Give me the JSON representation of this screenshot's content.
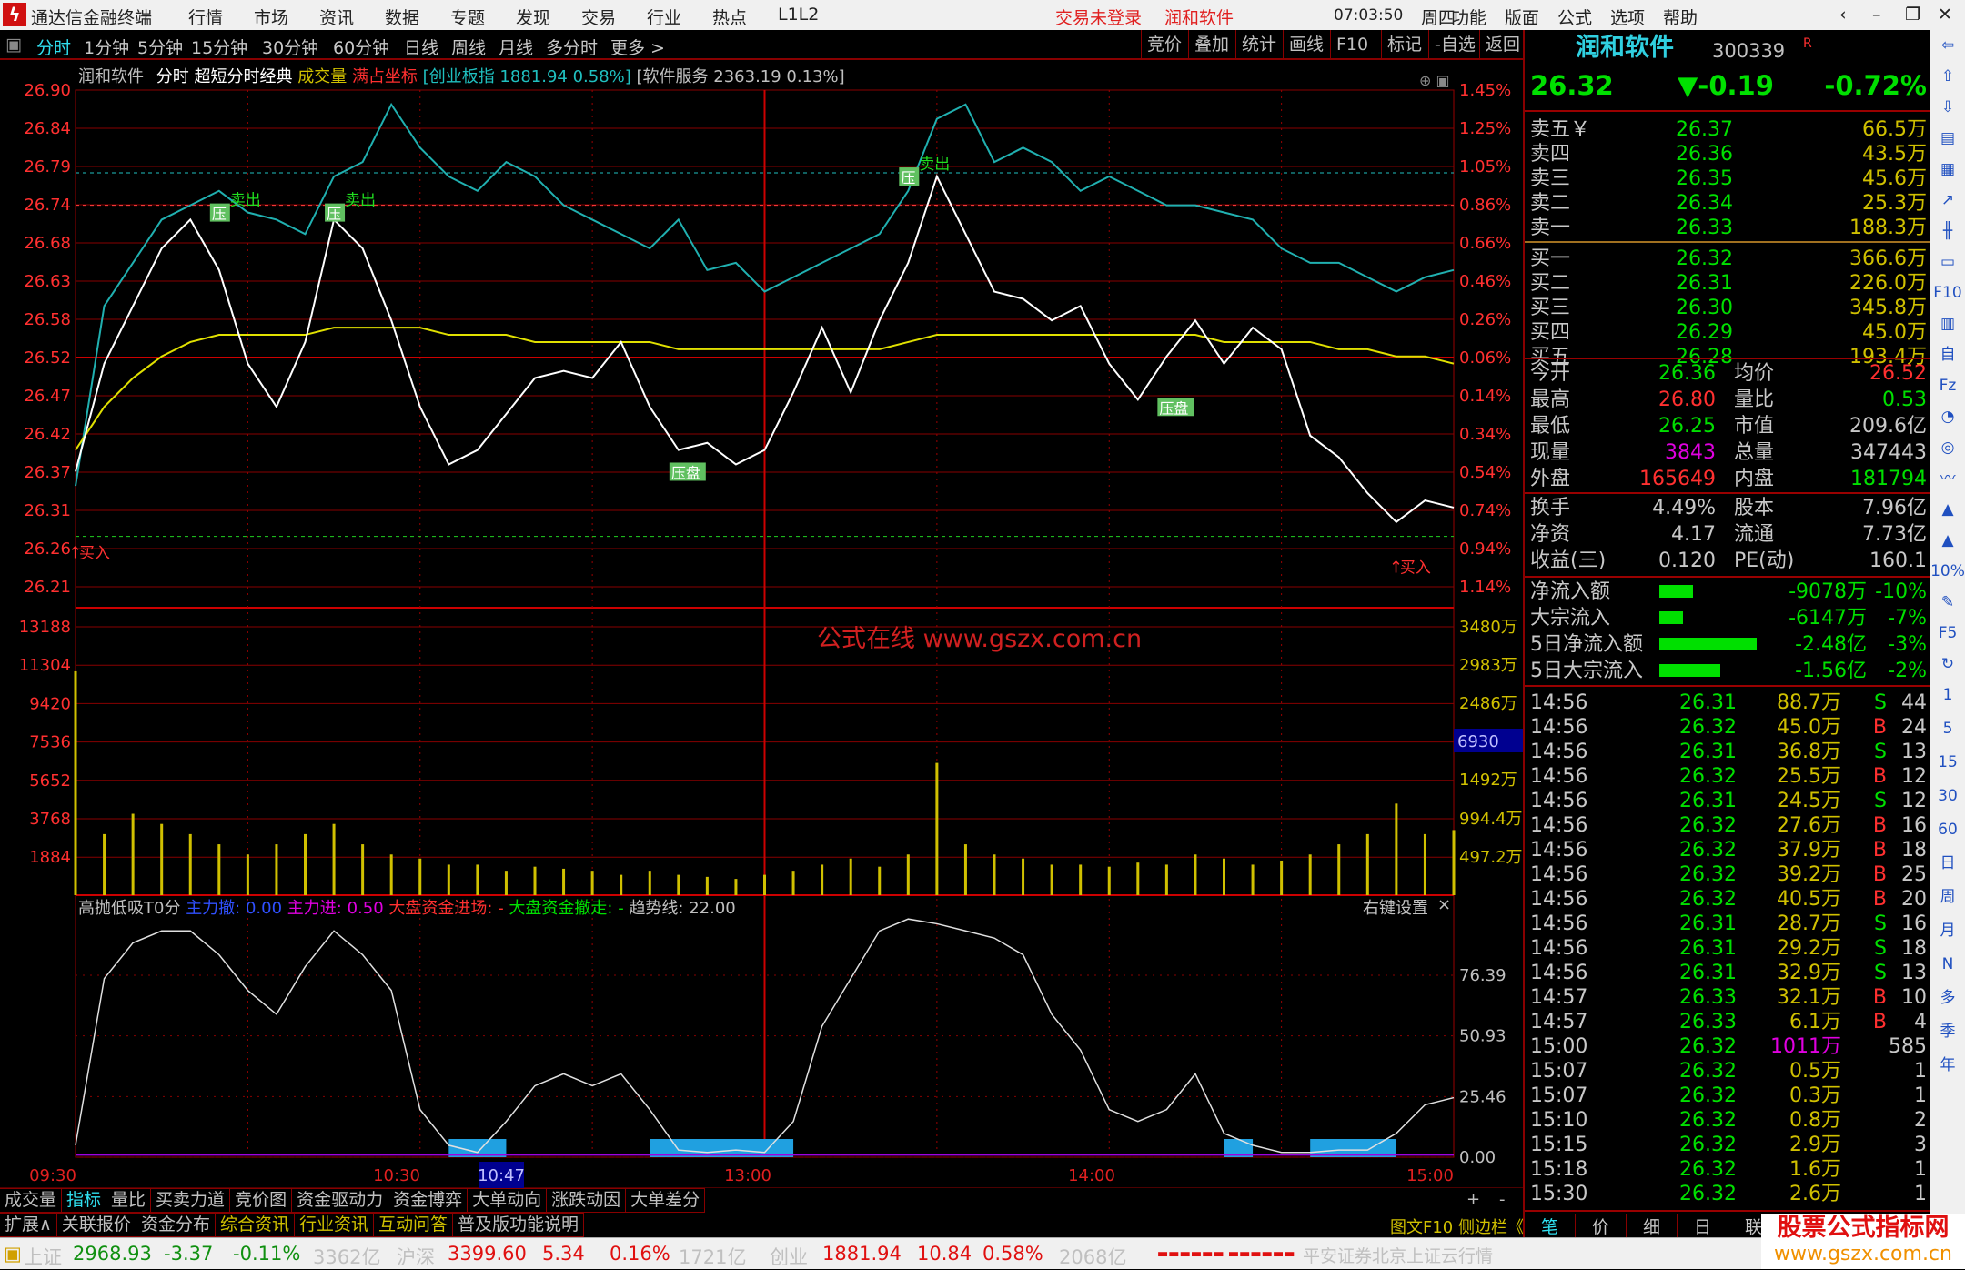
{
  "app": {
    "title": "通达信金融终端",
    "menu": [
      "行情",
      "市场",
      "资讯",
      "数据",
      "专题",
      "发现",
      "交易",
      "行业",
      "热点",
      "L1L2"
    ],
    "login_status": "交易未登录",
    "stock_tab": "润和软件",
    "right_menu": [
      "功能",
      "版面",
      "公式",
      "选项",
      "帮助"
    ],
    "clock": "07:03:50",
    "weekday": "周四"
  },
  "toolbar": {
    "periods": [
      "分时",
      "1分钟",
      "5分钟",
      "15分钟",
      "30分钟",
      "60分钟",
      "日线",
      "周线",
      "月线",
      "多分时",
      "更多 >"
    ],
    "active": "分时",
    "right": [
      "竞价",
      "叠加",
      "统计",
      "画线",
      "F10",
      "标记",
      "-自选",
      "返回"
    ]
  },
  "chart_header": {
    "name": "润和软件",
    "mode": "分时",
    "formula": "超短分时经典",
    "vol": "成交量",
    "coord": "满占坐标",
    "index1": "[创业板指 1881.94 0.58%]",
    "index2": "[软件服务 2363.19 0.13%]"
  },
  "watermark": "公式在线  www.gszx.com.cn",
  "chart_data": {
    "type": "line",
    "price_ticks": [
      "26.90",
      "26.84",
      "26.79",
      "26.74",
      "26.68",
      "26.63",
      "26.58",
      "26.52",
      "26.47",
      "26.42",
      "26.37",
      "26.31",
      "26.26",
      "26.21"
    ],
    "pct_ticks": [
      "1.45%",
      "1.25%",
      "1.05%",
      "0.86%",
      "0.66%",
      "0.46%",
      "0.26%",
      "0.06%",
      "0.14%",
      "0.34%",
      "0.54%",
      "0.74%",
      "0.94%",
      "1.14%"
    ],
    "vol_ticks_left": [
      "13188",
      "11304",
      "9420",
      "7536",
      "5652",
      "3768",
      "1884"
    ],
    "vol_ticks_right": [
      "3480万",
      "2983万",
      "2486万",
      "1492万",
      "994.4万",
      "497.2万"
    ],
    "vol_cursor": "6930",
    "ind_ticks": [
      "76.39",
      "50.93",
      "25.46",
      "0.00"
    ],
    "time_ticks": [
      "09:30",
      "10:30",
      "13:00",
      "14:00",
      "15:00"
    ],
    "cursor_time": "10:47",
    "ylim": [
      26.21,
      26.9
    ],
    "vol_max": 13188,
    "ind_range": [
      0,
      100
    ],
    "times": [
      "09:30",
      "09:35",
      "09:40",
      "09:45",
      "09:50",
      "09:55",
      "10:00",
      "10:05",
      "10:10",
      "10:15",
      "10:20",
      "10:25",
      "10:30",
      "10:35",
      "10:40",
      "10:45",
      "10:50",
      "10:55",
      "11:00",
      "11:05",
      "11:10",
      "11:15",
      "11:20",
      "11:25",
      "11:30",
      "13:05",
      "13:10",
      "13:15",
      "13:20",
      "13:25",
      "13:30",
      "13:35",
      "13:40",
      "13:45",
      "13:50",
      "13:55",
      "14:00",
      "14:05",
      "14:10",
      "14:15",
      "14:20",
      "14:25",
      "14:30",
      "14:35",
      "14:40",
      "14:45",
      "14:50",
      "14:55",
      "15:00"
    ],
    "series": [
      {
        "key": "price",
        "color": "#ffffff",
        "values": [
          26.37,
          26.52,
          26.6,
          26.68,
          26.72,
          26.65,
          26.52,
          26.46,
          26.55,
          26.72,
          26.68,
          26.58,
          26.46,
          26.38,
          26.4,
          26.45,
          26.5,
          26.51,
          26.5,
          26.55,
          26.46,
          26.4,
          26.41,
          26.38,
          26.4,
          26.48,
          26.57,
          26.48,
          26.58,
          26.66,
          26.78,
          26.7,
          26.62,
          26.61,
          26.58,
          26.6,
          26.52,
          26.47,
          26.53,
          26.58,
          26.52,
          26.57,
          26.54,
          26.42,
          26.39,
          26.34,
          26.3,
          26.33,
          26.32
        ]
      },
      {
        "key": "avg",
        "color": "#e0e000",
        "values": [
          26.4,
          26.46,
          26.5,
          26.53,
          26.55,
          26.56,
          26.56,
          26.56,
          26.56,
          26.57,
          26.57,
          26.57,
          26.57,
          26.56,
          26.56,
          26.56,
          26.55,
          26.55,
          26.55,
          26.55,
          26.55,
          26.54,
          26.54,
          26.54,
          26.54,
          26.54,
          26.54,
          26.54,
          26.54,
          26.55,
          26.56,
          26.56,
          26.56,
          26.56,
          26.56,
          26.56,
          26.56,
          26.56,
          26.56,
          26.56,
          26.55,
          26.55,
          26.55,
          26.55,
          26.54,
          26.54,
          26.53,
          26.53,
          26.52
        ]
      },
      {
        "key": "index",
        "color": "#20b0b0",
        "values": [
          26.35,
          26.6,
          26.66,
          26.72,
          26.74,
          26.76,
          26.73,
          26.72,
          26.7,
          26.78,
          26.8,
          26.88,
          26.82,
          26.78,
          26.76,
          26.8,
          26.78,
          26.74,
          26.72,
          26.7,
          26.68,
          26.72,
          26.65,
          26.66,
          26.62,
          26.64,
          26.66,
          26.68,
          26.7,
          26.76,
          26.86,
          26.88,
          26.8,
          26.82,
          26.8,
          26.76,
          26.78,
          26.76,
          26.74,
          26.74,
          26.73,
          26.72,
          26.68,
          26.66,
          26.66,
          26.64,
          26.62,
          26.64,
          26.65
        ]
      }
    ],
    "volume": [
      11000,
      3000,
      4000,
      3500,
      3000,
      2500,
      2000,
      2500,
      3000,
      3500,
      2500,
      2000,
      1800,
      1500,
      1500,
      1200,
      1400,
      1300,
      1200,
      1000,
      1200,
      1000,
      900,
      800,
      1000,
      1200,
      1500,
      1800,
      1400,
      2000,
      6500,
      2500,
      2000,
      1800,
      1500,
      1500,
      1400,
      1600,
      1500,
      2000,
      1800,
      1500,
      1700,
      2000,
      2500,
      3000,
      4500,
      3000,
      3200
    ],
    "indicator": {
      "name": "高抛低吸T0分",
      "values": [
        5,
        75,
        90,
        95,
        95,
        85,
        70,
        60,
        80,
        95,
        85,
        70,
        20,
        5,
        2,
        15,
        30,
        35,
        30,
        35,
        20,
        3,
        2,
        3,
        2,
        15,
        55,
        75,
        95,
        100,
        98,
        95,
        92,
        85,
        60,
        45,
        20,
        15,
        20,
        35,
        10,
        5,
        2,
        2,
        3,
        3,
        10,
        22,
        25
      ],
      "zones": [
        [
          "10:35",
          "10:45"
        ],
        [
          "11:10",
          "13:05"
        ],
        [
          "14:20",
          "14:25"
        ],
        [
          "14:35",
          "14:50"
        ]
      ]
    },
    "levels": [
      {
        "price": 26.785,
        "color": "#20c0c0"
      },
      {
        "price": 26.74,
        "color": "#ff4040"
      },
      {
        "price": 26.28,
        "color": "#20d020"
      }
    ],
    "annotations": [
      {
        "time": "09:55",
        "price": 26.74,
        "label": "压",
        "text": "卖出"
      },
      {
        "time": "10:15",
        "price": 26.74,
        "label": "压",
        "text": "卖出"
      },
      {
        "time": "13:25",
        "price": 26.79,
        "label": "压",
        "text": "卖出"
      },
      {
        "time": "11:15",
        "price": 26.38,
        "label": "压盘",
        "text": ""
      },
      {
        "time": "14:10",
        "price": 26.47,
        "label": "压盘",
        "text": ""
      }
    ],
    "buy_marks": [
      {
        "time": "09:30",
        "price": 26.26,
        "text": "买入"
      },
      {
        "time": "14:50",
        "price": 26.24,
        "text": "买入"
      }
    ]
  },
  "indicator_header": {
    "name": "高抛低吸T0分",
    "a": "主力撤: 0.00",
    "b": "主力进: 0.50",
    "c": "大盘资金进场: -",
    "d": "大盘资金撤走: -",
    "e": "趋势线: 22.00",
    "settings": "右键设置",
    "close": "×"
  },
  "tabs1": [
    "成交量",
    "指标",
    "量比",
    "买卖力道",
    "竞价图",
    "资金驱动力",
    "资金博弈",
    "大单动向",
    "涨跌动因",
    "大单差分"
  ],
  "tabs1_active": "指标",
  "tabs2": [
    "扩展∧",
    "关联报价",
    "资金分布",
    "综合资讯",
    "行业资讯",
    "互动问答",
    "普及版功能说明"
  ],
  "zoom_buttons": [
    "+",
    "-"
  ],
  "sidebar_links": "图文F10 侧边栏《",
  "right": {
    "name": "润和软件",
    "code": "300339",
    "flag": "R",
    "price": "26.32",
    "change": "▼-0.19",
    "pct": "-0.72%",
    "sell": [
      [
        "卖五￥",
        "26.37",
        "66.5万"
      ],
      [
        "卖四",
        "26.36",
        "43.5万"
      ],
      [
        "卖三",
        "26.35",
        "45.6万"
      ],
      [
        "卖二",
        "26.34",
        "25.3万"
      ],
      [
        "卖一",
        "26.33",
        "188.3万"
      ]
    ],
    "buy": [
      [
        "买一",
        "26.32",
        "366.6万"
      ],
      [
        "买二",
        "26.31",
        "226.0万"
      ],
      [
        "买三",
        "26.30",
        "345.8万"
      ],
      [
        "买四",
        "26.29",
        "45.0万"
      ],
      [
        "买五",
        "26.28",
        "193.4万"
      ]
    ],
    "stats": [
      [
        "今开",
        "26.36",
        "g",
        "均价",
        "26.52",
        "r"
      ],
      [
        "最高",
        "26.80",
        "r",
        "量比",
        "0.53",
        "g"
      ],
      [
        "最低",
        "26.25",
        "g",
        "市值",
        "209.6亿",
        "w"
      ],
      [
        "现量",
        "3843",
        "m",
        "总量",
        "347443",
        "w"
      ],
      [
        "外盘",
        "165649",
        "r",
        "内盘",
        "181794",
        "g"
      ]
    ],
    "stats2": [
      [
        "换手",
        "4.49%",
        "股本",
        "7.96亿"
      ],
      [
        "净资",
        "4.17",
        "流通",
        "7.73亿"
      ],
      [
        "收益(三)",
        "0.120",
        "PE(动)",
        "160.1"
      ]
    ],
    "flows": [
      [
        "净流入额",
        10,
        "-9078万",
        "-10%"
      ],
      [
        "大宗流入",
        7,
        "-6147万",
        "-7%"
      ],
      [
        "5日净流入额",
        29,
        "-2.48亿",
        "-3%"
      ],
      [
        "5日大宗流入",
        18,
        "-1.56亿",
        "-2%"
      ]
    ],
    "trades": [
      [
        "14:56",
        "26.31",
        "88.7万",
        "S",
        "44"
      ],
      [
        "14:56",
        "26.32",
        "45.0万",
        "B",
        "24"
      ],
      [
        "14:56",
        "26.31",
        "36.8万",
        "S",
        "13"
      ],
      [
        "14:56",
        "26.32",
        "25.5万",
        "B",
        "12"
      ],
      [
        "14:56",
        "26.31",
        "24.5万",
        "S",
        "12"
      ],
      [
        "14:56",
        "26.32",
        "27.6万",
        "B",
        "16"
      ],
      [
        "14:56",
        "26.32",
        "37.9万",
        "B",
        "18"
      ],
      [
        "14:56",
        "26.32",
        "39.2万",
        "B",
        "25"
      ],
      [
        "14:56",
        "26.32",
        "40.5万",
        "B",
        "20"
      ],
      [
        "14:56",
        "26.31",
        "28.7万",
        "S",
        "16"
      ],
      [
        "14:56",
        "26.31",
        "29.2万",
        "S",
        "18"
      ],
      [
        "14:56",
        "26.31",
        "32.9万",
        "S",
        "13"
      ],
      [
        "14:57",
        "26.33",
        "32.1万",
        "B",
        "10"
      ],
      [
        "14:57",
        "26.33",
        "6.1万",
        "B",
        "4"
      ],
      [
        "15:00",
        "26.32",
        "1011万",
        "",
        "585"
      ],
      [
        "15:07",
        "26.32",
        "0.5万",
        "",
        "1"
      ],
      [
        "15:07",
        "26.32",
        "0.3万",
        "",
        "1"
      ],
      [
        "15:10",
        "26.32",
        "0.8万",
        "",
        "2"
      ],
      [
        "15:15",
        "26.32",
        "2.9万",
        "",
        "3"
      ],
      [
        "15:18",
        "26.32",
        "1.6万",
        "",
        "1"
      ],
      [
        "15:30",
        "26.32",
        "2.6万",
        "",
        "1"
      ]
    ],
    "bottom_tabs": [
      "笔",
      "价",
      "细",
      "日",
      "联"
    ]
  },
  "iconstrip": [
    "⇦",
    "⇧",
    "⇩",
    "▤",
    "▦",
    "↗",
    "╫",
    "▭",
    "F10",
    "▥",
    "自",
    "Fz",
    "◔",
    "◎",
    "〰",
    "▲",
    "▲",
    "10%",
    "✎",
    "F5",
    "↻",
    "1",
    "5",
    "15",
    "30",
    "60",
    "日",
    "周",
    "月",
    "N",
    "多",
    "季",
    "年"
  ],
  "status": {
    "sh_name": "上证",
    "sh": "2968.93",
    "sh_chg": "-3.37",
    "sh_pct": "-0.11%",
    "sh_amt": "3362亿",
    "hs_name": "沪深",
    "hs": "3399.60",
    "hs_chg": "5.34",
    "hs_pct": "0.16%",
    "hs_amt": "1721亿",
    "cy_name": "创业",
    "cy": "1881.94",
    "cy_chg": "10.84",
    "cy_pct": "0.58%",
    "cy_amt": "2068亿",
    "server": "平安证券北京上证云行情"
  },
  "logo": {
    "line1": "股票公式指标网",
    "line2": "www.gszx.com.cn"
  }
}
